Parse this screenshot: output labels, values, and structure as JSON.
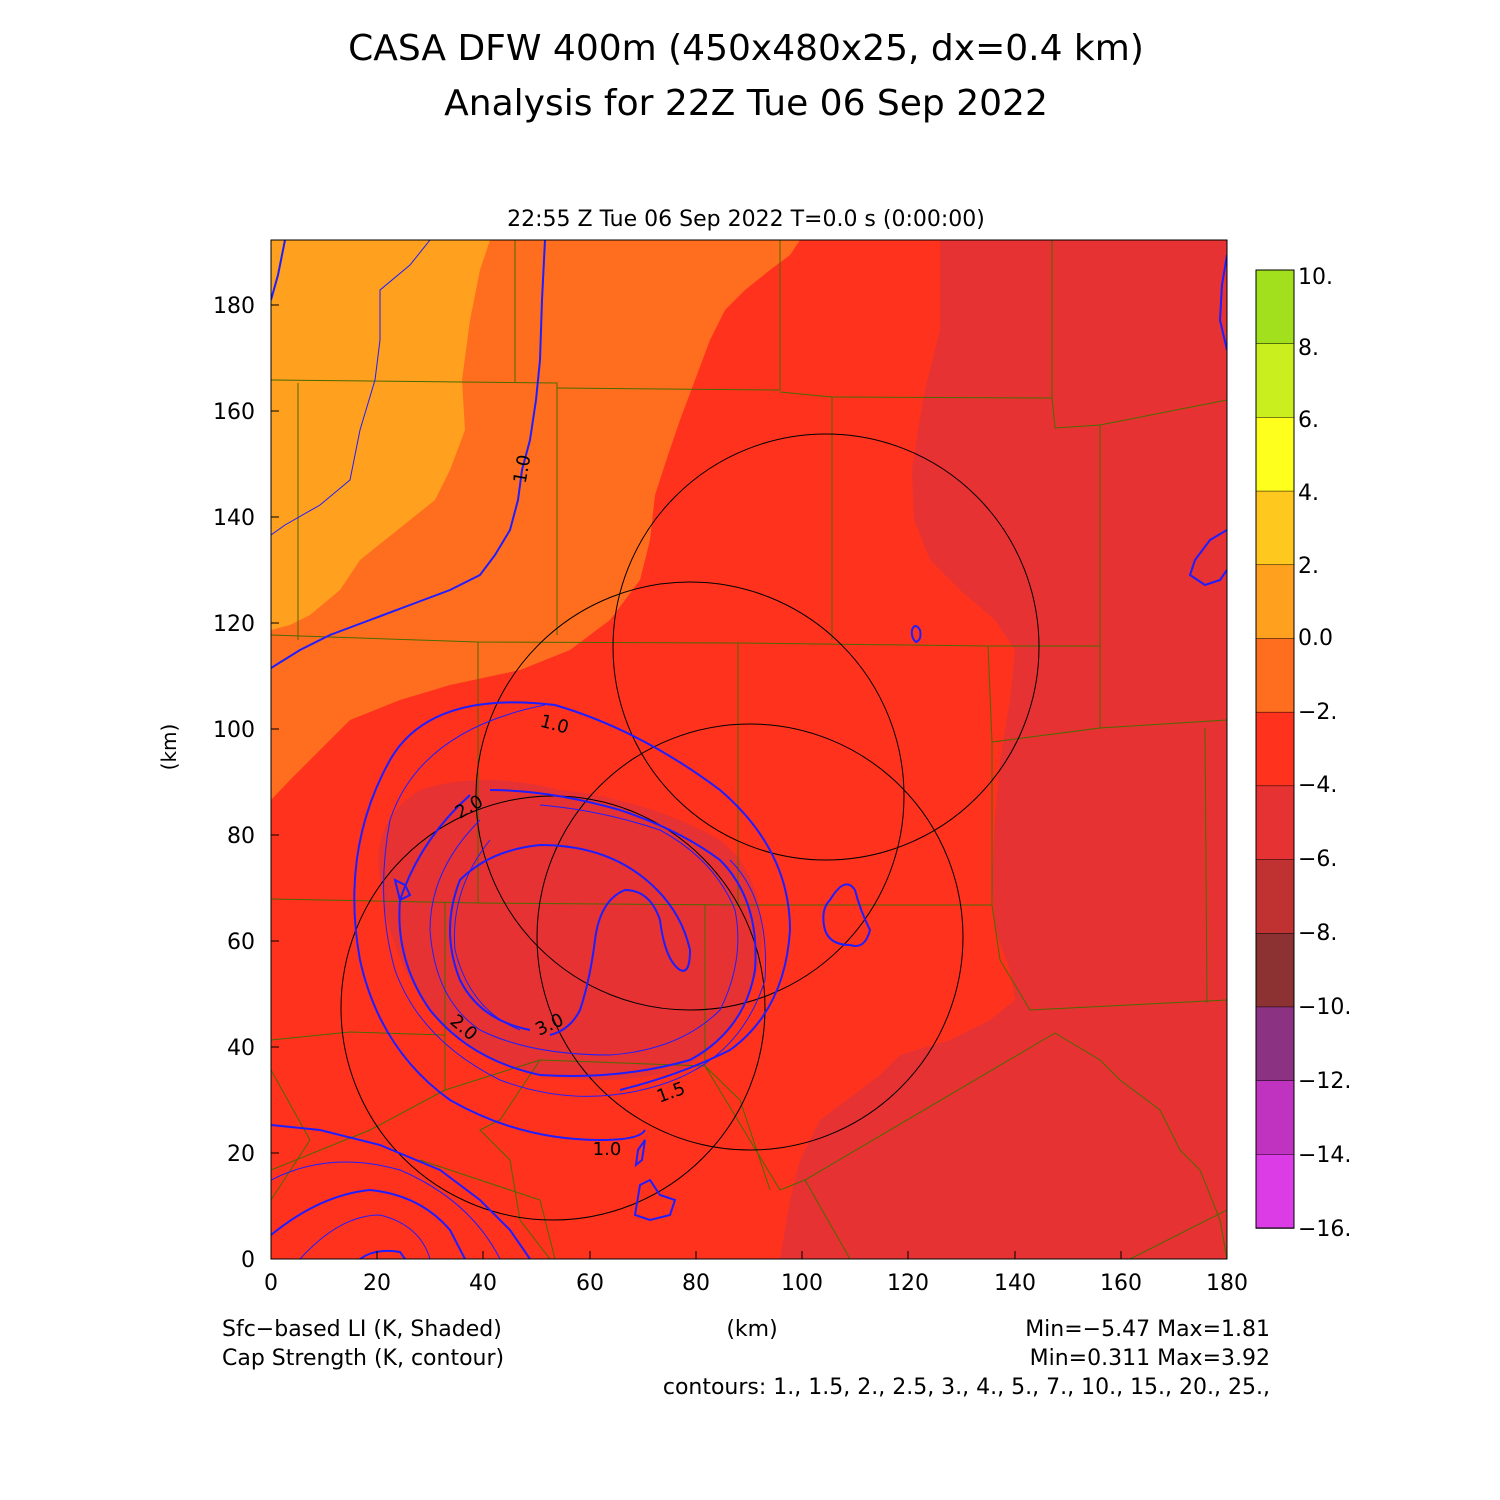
{
  "title": {
    "line1": "CASA DFW 400m (450x480x25, dx=0.4 km)",
    "line2": "Analysis for 22Z Tue 06 Sep 2022"
  },
  "subtitle": "22:55 Z Tue 06 Sep 2022   T=0.0 s (0:00:00)",
  "axes": {
    "xlabel": "(km)",
    "ylabel": "(km)",
    "x_ticks": [
      "0",
      "20",
      "40",
      "60",
      "80",
      "100",
      "120",
      "140",
      "160",
      "180"
    ],
    "y_ticks": [
      "0",
      "20",
      "40",
      "60",
      "80",
      "100",
      "120",
      "140",
      "160",
      "180"
    ],
    "xlim": [
      0,
      180
    ],
    "ylim": [
      0,
      192
    ]
  },
  "colorbar": {
    "labels": [
      "10.",
      "8.",
      "6.",
      "4.",
      "2.",
      "0.0",
      "−2.",
      "−4.",
      "−6.",
      "−8.",
      "−10.",
      "−12.",
      "−14.",
      "−16."
    ],
    "colors": [
      "#a2e01e",
      "#c9f01e",
      "#ffff1e",
      "#ffc81e",
      "#ffa01e",
      "#ff6e1e",
      "#ff321e",
      "#e63232",
      "#c03232",
      "#8c3232",
      "#8c3282",
      "#c032c0",
      "#dc3ce6"
    ]
  },
  "contour_labels": [
    "1.0",
    "1.0",
    "2.0",
    "2.0",
    "3.0",
    "1.5",
    "1.0"
  ],
  "footer": {
    "left1": "Sfc−based LI (K, Shaded)",
    "left2": "Cap Strength (K, contour)",
    "center": "(km)",
    "right1": "Min=−5.47 Max=1.81",
    "right2": "Min=0.311 Max=3.92",
    "contours": "contours: 1., 1.5, 2., 2.5, 3., 4., 5., 7., 10., 15., 20., 25.,"
  },
  "colors": {
    "orange_light": "#ffa01e",
    "orange": "#ff6e1e",
    "red_orange": "#ff321e",
    "red": "#e63232",
    "county_lines": "#4a6a00",
    "contour_blue": "#1e1eff",
    "radar_rings": "#000000"
  }
}
